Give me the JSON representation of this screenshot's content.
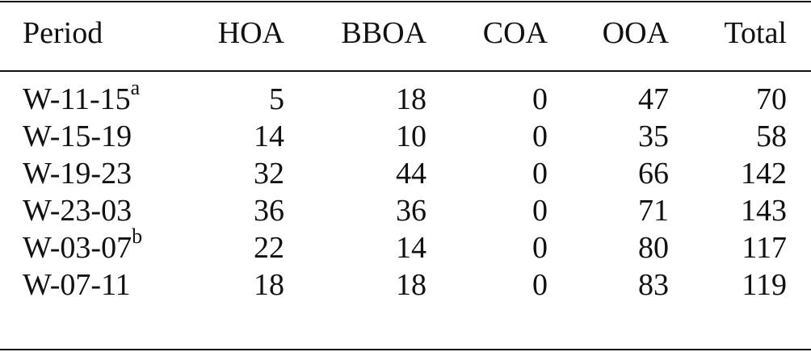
{
  "table": {
    "header": [
      "Period",
      "HOA",
      "BBOA",
      "COA",
      "OOA",
      "Total"
    ],
    "rows": [
      {
        "period": "W-11-15",
        "note": "a",
        "cells": [
          5,
          18,
          0,
          47,
          70
        ]
      },
      {
        "period": "W-15-19",
        "cells": [
          14,
          10,
          0,
          35,
          58
        ]
      },
      {
        "period": "W-19-23",
        "cells": [
          32,
          44,
          0,
          66,
          142
        ]
      },
      {
        "period": "W-23-03",
        "cells": [
          36,
          36,
          0,
          71,
          143
        ]
      },
      {
        "period": "W-03-07",
        "note": "b",
        "cells": [
          22,
          14,
          0,
          80,
          117
        ]
      },
      {
        "period": "W-07-11",
        "cells": [
          18,
          18,
          0,
          83,
          119
        ]
      }
    ]
  }
}
